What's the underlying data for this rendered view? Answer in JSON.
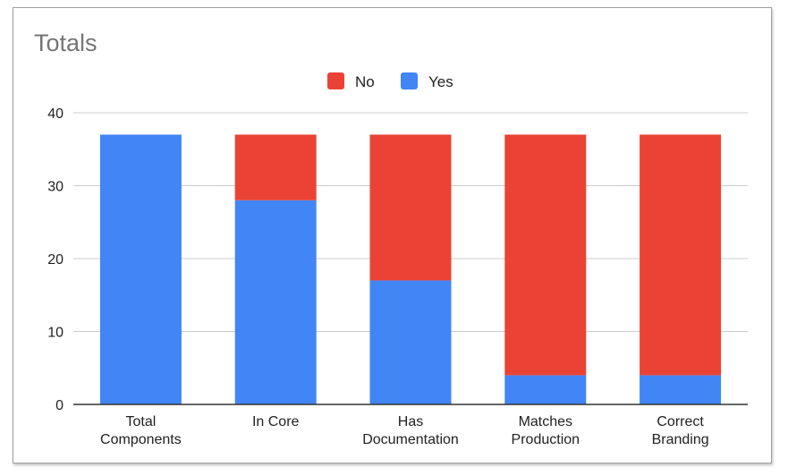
{
  "chart_data": {
    "type": "bar",
    "stacked": true,
    "title": "Totals",
    "xlabel": "",
    "ylabel": "",
    "ylim": [
      0,
      40
    ],
    "yticks": [
      0,
      10,
      20,
      30,
      40
    ],
    "grid": true,
    "legend_position": "top-center",
    "categories": [
      [
        "Total",
        "Components"
      ],
      [
        "In Core"
      ],
      [
        "Has",
        "Documentation"
      ],
      [
        "Matches",
        "Production"
      ],
      [
        "Correct",
        "Branding"
      ]
    ],
    "series": [
      {
        "name": "No",
        "color": "#ea4335",
        "values": [
          0,
          9,
          20,
          33,
          33
        ]
      },
      {
        "name": "Yes",
        "color": "#4285f4",
        "values": [
          37,
          28,
          17,
          4,
          4
        ]
      }
    ],
    "legend_order": [
      "No",
      "Yes"
    ]
  },
  "colors": {
    "title": "#757575",
    "axis_text": "#222222",
    "grid": "#cccccc",
    "baseline": "#333333"
  }
}
